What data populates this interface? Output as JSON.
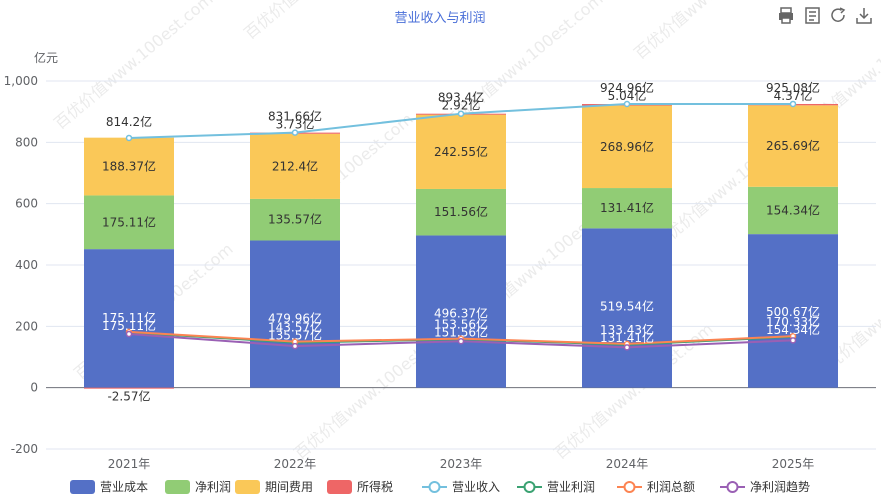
{
  "toolbar": {
    "icons": [
      "print-icon",
      "data-view-icon",
      "refresh-icon",
      "download-icon"
    ]
  },
  "watermark": "百优价值www.100est.com",
  "chart_data": {
    "type": "bar",
    "title": "营业收入与利润",
    "unit": "亿元",
    "categories": [
      "2021年",
      "2022年",
      "2023年",
      "2024年",
      "2025年"
    ],
    "ylim": [
      -200,
      1000
    ],
    "yticks": [
      "-200",
      "0",
      "200",
      "400",
      "600",
      "800",
      "1,000"
    ],
    "ytick_values": [
      -200,
      0,
      200,
      400,
      600,
      800,
      1000
    ],
    "grid": true,
    "legend_position": "bottom",
    "stack_series": [
      {
        "name": "营业成本",
        "color": "#5470c6",
        "values": [
          451.73,
          479.96,
          496.37,
          519.54,
          500.67
        ],
        "labels": [
          "",
          "479.96亿",
          "496.37亿",
          "519.54亿",
          "500.67亿"
        ]
      },
      {
        "name": "净利润",
        "color": "#91cc75",
        "values": [
          175.11,
          135.57,
          151.56,
          131.41,
          154.34
        ],
        "labels": [
          "175.11亿",
          "135.57亿",
          "151.56亿",
          "131.41亿",
          "154.34亿"
        ]
      },
      {
        "name": "期间费用",
        "color": "#fac858",
        "values": [
          188.37,
          212.4,
          242.55,
          268.96,
          265.69
        ],
        "labels": [
          "188.37亿",
          "212.4亿",
          "242.55亿",
          "268.96亿",
          "265.69亿"
        ]
      },
      {
        "name": "所得税",
        "color": "#ee6666",
        "values": [
          -2.57,
          3.73,
          2.92,
          5.04,
          4.37
        ],
        "labels": [
          "-2.57亿",
          "3.73亿",
          "2.92亿",
          "5.04亿",
          "4.37亿"
        ]
      }
    ],
    "line_series": [
      {
        "name": "营业收入",
        "color": "#73c0de",
        "values": [
          814.2,
          831.66,
          893.4,
          924.96,
          925.08
        ],
        "labels": [
          "814.2亿",
          "831.66亿",
          "893.4亿",
          "924.96亿",
          "925.08亿"
        ]
      },
      {
        "name": "营业利润",
        "color": "#3ba272",
        "values": [
          180.0,
          147.0,
          158.0,
          140.0,
          166.0
        ],
        "labels": [
          "",
          "",
          "",
          "",
          ""
        ]
      },
      {
        "name": "利润总额",
        "color": "#fc8452",
        "values": [
          182.0,
          150.0,
          160.0,
          143.0,
          168.0
        ],
        "labels": [
          "",
          "",
          "",
          "",
          ""
        ]
      },
      {
        "name": "净利润趋势",
        "color": "#9a60b4",
        "values": [
          175.11,
          135.57,
          151.56,
          131.41,
          154.34
        ],
        "labels": [
          "",
          "",
          "",
          "",
          ""
        ]
      }
    ],
    "overlay_labels": [
      [
        "175.11亿",
        "175.11亿"
      ],
      [
        "143.57亿",
        "135.57亿"
      ],
      [
        "153.56亿",
        "151.56亿"
      ],
      [
        "133.43亿",
        "131.41亿"
      ],
      [
        "170.33亿",
        "154.34亿"
      ]
    ]
  }
}
